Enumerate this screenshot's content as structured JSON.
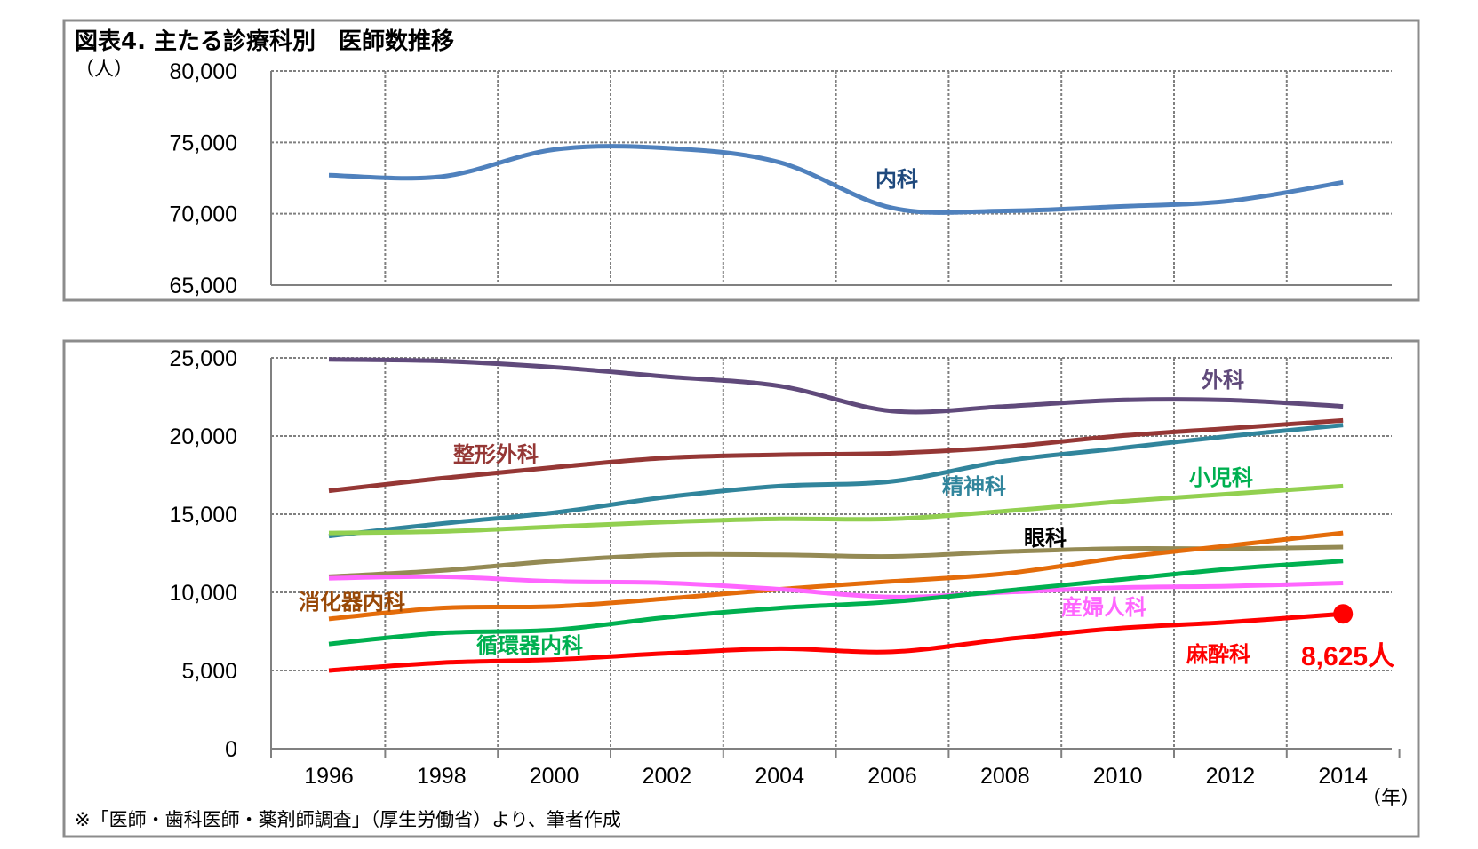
{
  "chart_data": [
    {
      "type": "line",
      "title": "図表4. 主たる診療科別　医師数推移",
      "ylabel_unit": "（人）",
      "ylim": [
        65000,
        80000
      ],
      "yticks": [
        65000,
        70000,
        75000,
        80000
      ],
      "ytick_labels": [
        "65,000",
        "70,000",
        "75,000",
        "80,000"
      ],
      "x": [
        1996,
        1998,
        2000,
        2002,
        2004,
        2006,
        2008,
        2010,
        2012,
        2014
      ],
      "series": [
        {
          "name": "内科",
          "color": "#4f81bd",
          "values": [
            72700,
            72600,
            74500,
            74600,
            73600,
            70400,
            70200,
            70500,
            70900,
            72200
          ]
        }
      ]
    },
    {
      "type": "line",
      "ylim": [
        0,
        25000
      ],
      "yticks": [
        0,
        5000,
        10000,
        15000,
        20000,
        25000
      ],
      "ytick_labels": [
        "0",
        "5,000",
        "10,000",
        "15,000",
        "20,000",
        "25,000"
      ],
      "x": [
        1996,
        1998,
        2000,
        2002,
        2004,
        2006,
        2008,
        2010,
        2012,
        2014
      ],
      "xtick_labels": [
        "1996",
        "1998",
        "2000",
        "2002",
        "2004",
        "2006",
        "2008",
        "2010",
        "2012",
        "2014"
      ],
      "xlabel_unit": "（年）",
      "series": [
        {
          "name": "外科",
          "color": "#604a7b",
          "values": [
            24900,
            24800,
            24400,
            23800,
            23200,
            21600,
            21900,
            22300,
            22300,
            21900
          ]
        },
        {
          "name": "整形外科",
          "color": "#953735",
          "values": [
            16500,
            17300,
            18000,
            18600,
            18800,
            18900,
            19300,
            20000,
            20500,
            21000
          ]
        },
        {
          "name": "精神科",
          "color": "#31859c",
          "values": [
            13600,
            14400,
            15100,
            16100,
            16800,
            17100,
            18400,
            19200,
            20000,
            20700
          ]
        },
        {
          "name": "小児科",
          "color": "#92d050",
          "values": [
            13800,
            13900,
            14200,
            14500,
            14700,
            14700,
            15200,
            15800,
            16300,
            16800
          ]
        },
        {
          "name": "眼科",
          "color": "#948a54",
          "values": [
            11000,
            11400,
            12000,
            12400,
            12400,
            12300,
            12600,
            12800,
            12800,
            12900
          ]
        },
        {
          "name": "消化器内科",
          "color": "#e46c0a",
          "values": [
            8300,
            9000,
            9100,
            9600,
            10200,
            10700,
            11200,
            12200,
            13000,
            13800
          ]
        },
        {
          "name": "産婦人科",
          "color": "#ff66ff",
          "values": [
            10900,
            11000,
            10700,
            10600,
            10200,
            9700,
            10000,
            10300,
            10400,
            10600
          ]
        },
        {
          "name": "循環器内科",
          "color": "#00b050",
          "values": [
            6700,
            7400,
            7600,
            8400,
            9000,
            9400,
            10100,
            10800,
            11500,
            12000
          ]
        },
        {
          "name": "麻酔科",
          "color": "#ff0000",
          "values": [
            5000,
            5500,
            5700,
            6100,
            6400,
            6200,
            7000,
            7700,
            8100,
            8625
          ]
        }
      ],
      "annotation": "8,625人"
    }
  ],
  "source_note": "※「医師・歯科医師・薬剤師調査」（厚生労働省）より、筆者作成"
}
